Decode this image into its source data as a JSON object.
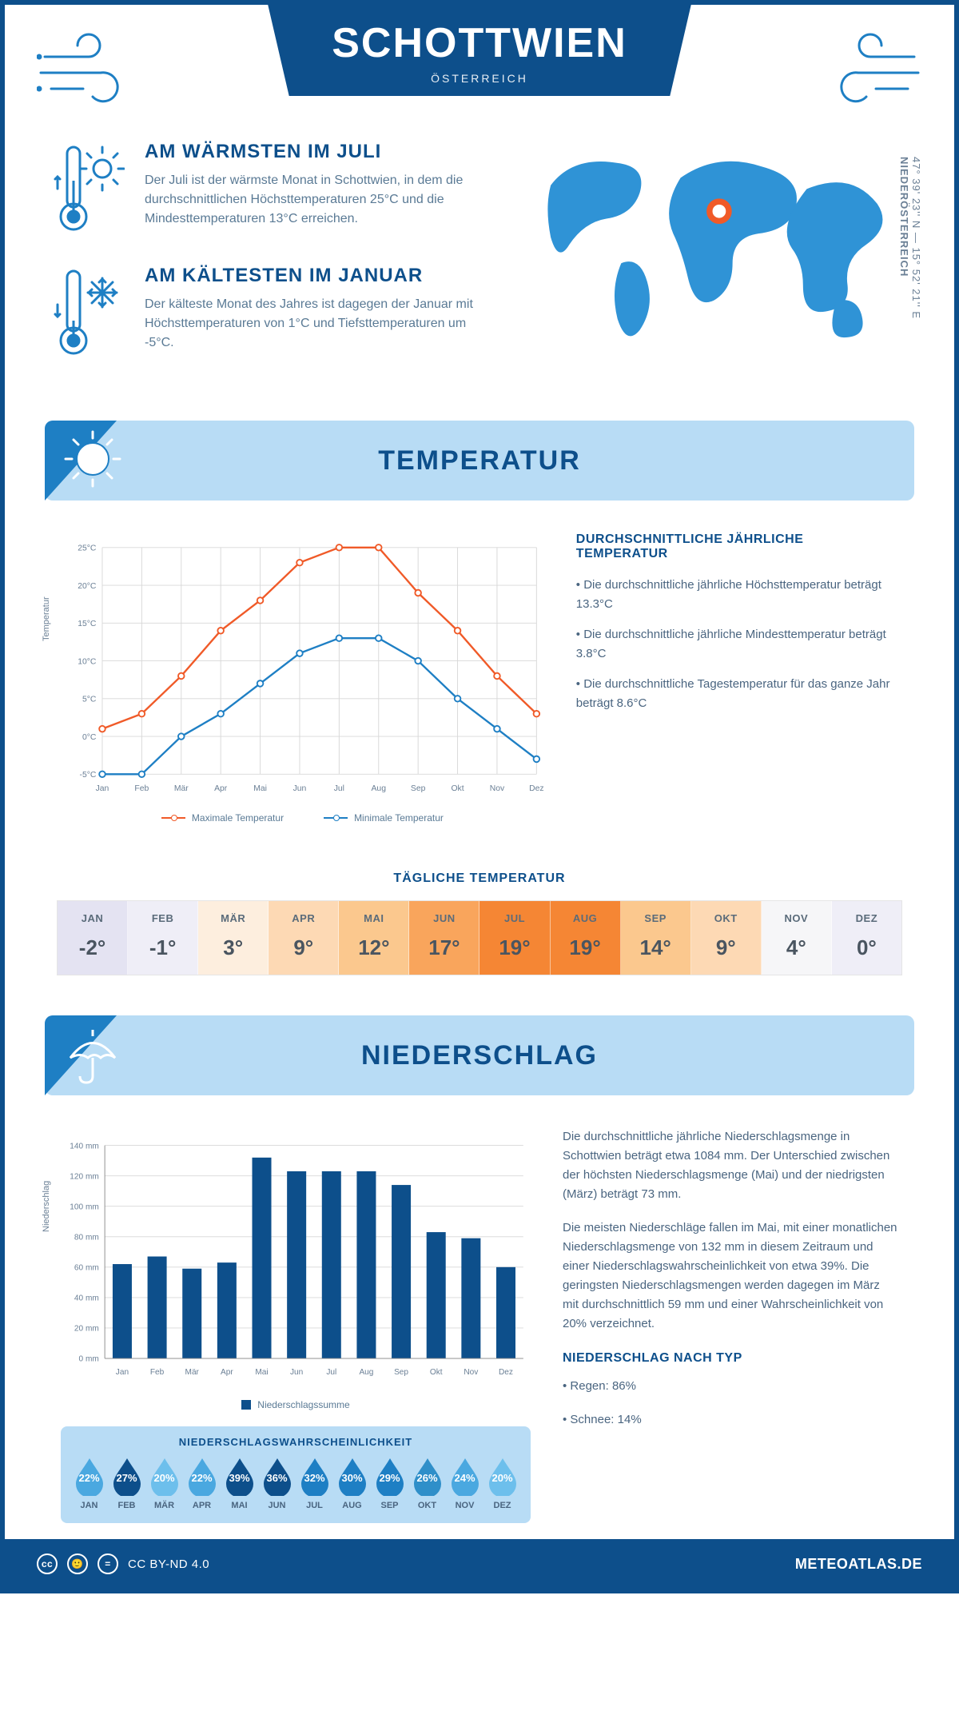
{
  "header": {
    "title": "SCHOTTWIEN",
    "country": "ÖSTERREICH"
  },
  "intro": {
    "warmest": {
      "title": "AM WÄRMSTEN IM JULI",
      "text": "Der Juli ist der wärmste Monat in Schottwien, in dem die durchschnittlichen Höchsttemperaturen 25°C und die Mindesttemperaturen 13°C erreichen."
    },
    "coldest": {
      "title": "AM KÄLTESTEN IM JANUAR",
      "text": "Der kälteste Monat des Jahres ist dagegen der Januar mit Höchsttemperaturen von 1°C und Tiefsttemperaturen um -5°C."
    },
    "coords": "47° 39' 23'' N — 15° 52' 21'' E",
    "region": "NIEDERÖSTERREICH"
  },
  "colors": {
    "brand_dark": "#0d4f8b",
    "brand_mid": "#1e7fc4",
    "brand_light": "#b8dcf5",
    "orange": "#f05a28",
    "grid": "#d8d8d8",
    "text_muted": "#5a7a95"
  },
  "temperature": {
    "section_title": "TEMPERATUR",
    "chart": {
      "type": "line",
      "months": [
        "Jan",
        "Feb",
        "Mär",
        "Apr",
        "Mai",
        "Jun",
        "Jul",
        "Aug",
        "Sep",
        "Okt",
        "Nov",
        "Dez"
      ],
      "y_label": "Temperatur",
      "y_ticks": [
        "-5°C",
        "0°C",
        "5°C",
        "10°C",
        "15°C",
        "20°C",
        "25°C"
      ],
      "ymin": -5,
      "ymax": 25,
      "series": {
        "max": {
          "label": "Maximale Temperatur",
          "color": "#f05a28",
          "values": [
            1,
            3,
            8,
            14,
            18,
            23,
            25,
            25,
            19,
            14,
            8,
            3
          ]
        },
        "min": {
          "label": "Minimale Temperatur",
          "color": "#1e7fc4",
          "values": [
            -5,
            -5,
            0,
            3,
            7,
            11,
            13,
            13,
            10,
            5,
            1,
            -3
          ]
        }
      },
      "line_width": 2.5,
      "marker_r": 4,
      "grid_color": "#d8d8d8",
      "bg": "#ffffff"
    },
    "info": {
      "title": "DURCHSCHNITTLICHE JÄHRLICHE TEMPERATUR",
      "b1": "• Die durchschnittliche jährliche Höchsttemperatur beträgt 13.3°C",
      "b2": "• Die durchschnittliche jährliche Mindesttemperatur beträgt 3.8°C",
      "b3": "• Die durchschnittliche Tagestemperatur für das ganze Jahr beträgt 8.6°C"
    },
    "daily": {
      "title": "TÄGLICHE TEMPERATUR",
      "months": [
        "JAN",
        "FEB",
        "MÄR",
        "APR",
        "MAI",
        "JUN",
        "JUL",
        "AUG",
        "SEP",
        "OKT",
        "NOV",
        "DEZ"
      ],
      "values": [
        "-2°",
        "-1°",
        "3°",
        "9°",
        "12°",
        "17°",
        "19°",
        "19°",
        "14°",
        "9°",
        "4°",
        "0°"
      ],
      "cell_colors": [
        "#e4e3f2",
        "#efeef7",
        "#fdeede",
        "#fdd9b4",
        "#fbc88e",
        "#f9a55c",
        "#f58634",
        "#f58634",
        "#fbc88e",
        "#fdd9b4",
        "#f6f6f8",
        "#efeef7"
      ]
    }
  },
  "precipitation": {
    "section_title": "NIEDERSCHLAG",
    "chart": {
      "type": "bar",
      "months": [
        "Jan",
        "Feb",
        "Mär",
        "Apr",
        "Mai",
        "Jun",
        "Jul",
        "Aug",
        "Sep",
        "Okt",
        "Nov",
        "Dez"
      ],
      "y_label": "Niederschlag",
      "y_ticks": [
        "0 mm",
        "20 mm",
        "40 mm",
        "60 mm",
        "80 mm",
        "100 mm",
        "120 mm",
        "140 mm"
      ],
      "ymin": 0,
      "ymax": 140,
      "values": [
        62,
        67,
        59,
        63,
        132,
        123,
        123,
        123,
        114,
        83,
        79,
        60
      ],
      "bar_color": "#0d4f8b",
      "legend": "Niederschlagssumme",
      "bar_width": 0.55,
      "grid_color": "#d8d8d8"
    },
    "text": {
      "p1": "Die durchschnittliche jährliche Niederschlagsmenge in Schottwien beträgt etwa 1084 mm. Der Unterschied zwischen der höchsten Niederschlagsmenge (Mai) und der niedrigsten (März) beträgt 73 mm.",
      "p2": "Die meisten Niederschläge fallen im Mai, mit einer monatlichen Niederschlagsmenge von 132 mm in diesem Zeitraum und einer Niederschlagswahrscheinlichkeit von etwa 39%. Die geringsten Niederschlagsmengen werden dagegen im März mit durchschnittlich 59 mm und einer Wahrscheinlichkeit von 20% verzeichnet.",
      "type_title": "NIEDERSCHLAG NACH TYP",
      "type1": "• Regen: 86%",
      "type2": "• Schnee: 14%"
    },
    "probability": {
      "title": "NIEDERSCHLAGSWAHRSCHEINLICHKEIT",
      "months": [
        "JAN",
        "FEB",
        "MÄR",
        "APR",
        "MAI",
        "JUN",
        "JUL",
        "AUG",
        "SEP",
        "OKT",
        "NOV",
        "DEZ"
      ],
      "values": [
        "22%",
        "27%",
        "20%",
        "22%",
        "39%",
        "36%",
        "32%",
        "30%",
        "29%",
        "26%",
        "24%",
        "20%"
      ],
      "drop_colors": [
        "#4aa8e0",
        "#0d4f8b",
        "#6dbfec",
        "#4aa8e0",
        "#0d4f8b",
        "#0d4f8b",
        "#1e7fc4",
        "#1e7fc4",
        "#1e7fc4",
        "#2f8fc9",
        "#4aa8e0",
        "#6dbfec"
      ]
    }
  },
  "footer": {
    "license": "CC BY-ND 4.0",
    "site": "METEOATLAS.DE"
  }
}
